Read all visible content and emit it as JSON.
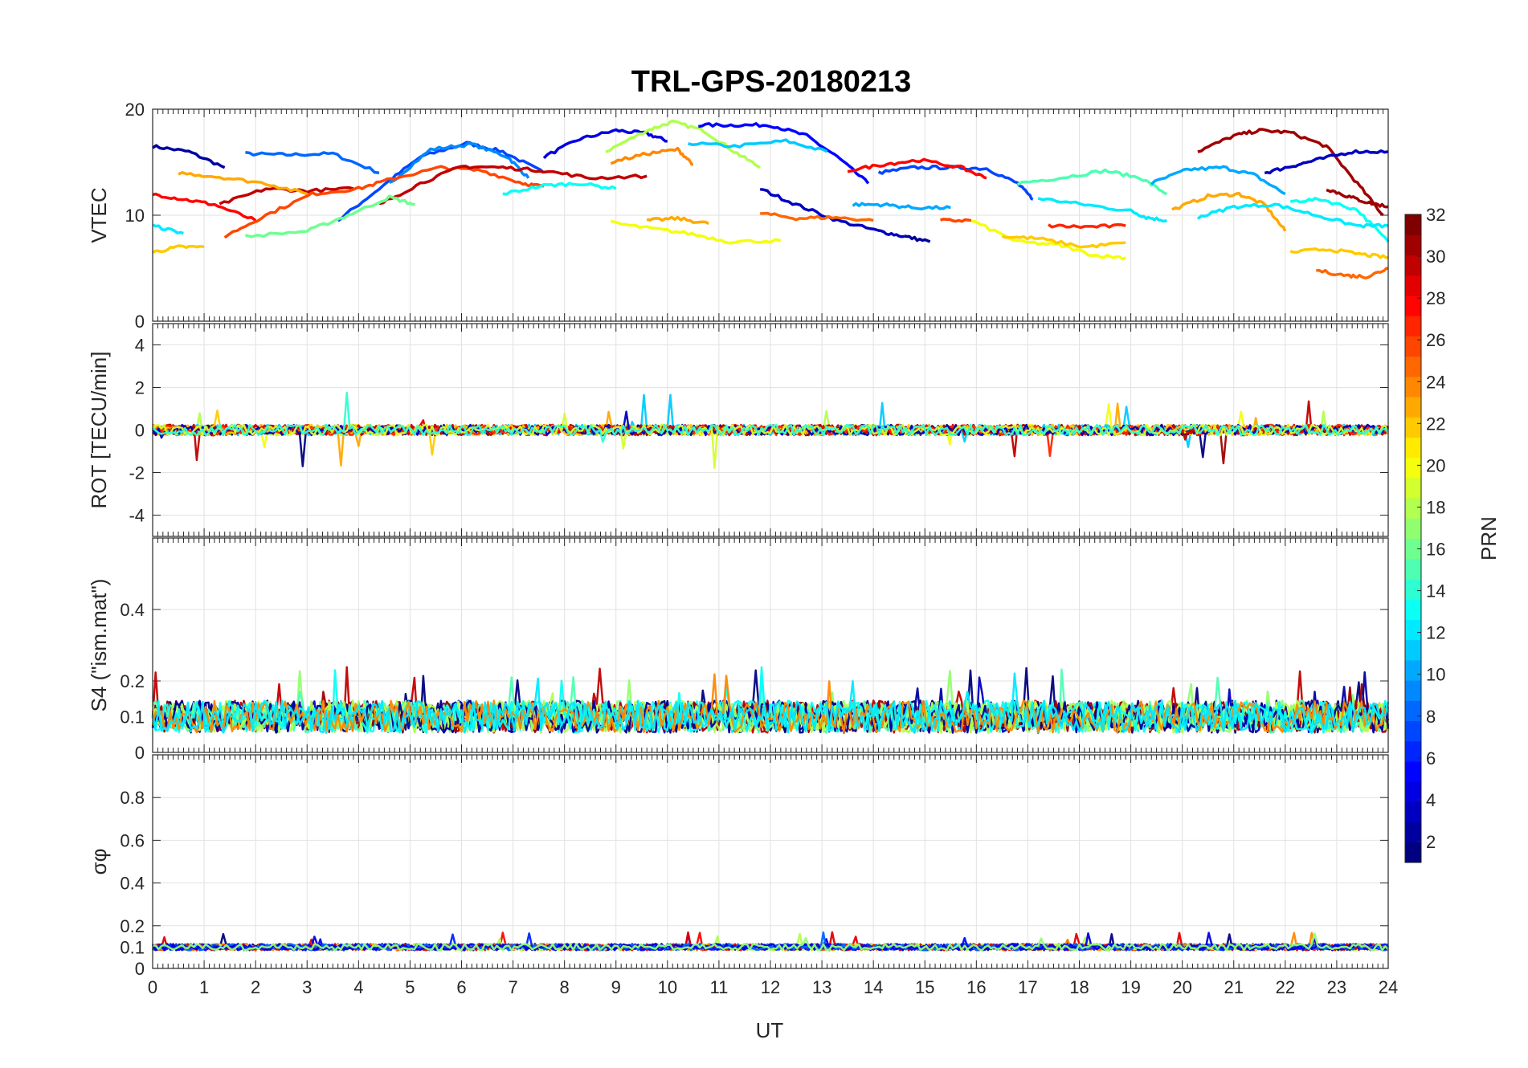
{
  "chart_data": {
    "type": "line",
    "title": "TRL-GPS-20180213",
    "xlabel": "UT",
    "xlim": [
      0,
      24
    ],
    "x_ticks": [
      "0",
      "1",
      "2",
      "3",
      "4",
      "5",
      "6",
      "7",
      "8",
      "9",
      "10",
      "11",
      "12",
      "13",
      "14",
      "15",
      "16",
      "17",
      "18",
      "19",
      "20",
      "21",
      "22",
      "23",
      "24"
    ],
    "colorbar": {
      "label": "PRN",
      "range": [
        1,
        32
      ],
      "ticks": [
        "2",
        "4",
        "6",
        "8",
        "10",
        "12",
        "14",
        "16",
        "18",
        "20",
        "22",
        "24",
        "26",
        "28",
        "30",
        "32"
      ],
      "colormap": "jet"
    },
    "panels": [
      {
        "name": "vtec",
        "ylabel": "VTEC",
        "ylim": [
          0,
          20
        ],
        "y_ticks": [
          "0",
          "10",
          "20"
        ],
        "series": [
          {
            "prn": 2,
            "x": [
              0,
              0.7,
              1.4
            ],
            "y": [
              16.5,
              16,
              14.5
            ]
          },
          {
            "prn": 8,
            "x": [
              1.8,
              2.6,
              3.5,
              4.4
            ],
            "y": [
              15.8,
              15.7,
              15.8,
              14
            ]
          },
          {
            "prn": 7,
            "x": [
              3.6,
              4.4,
              5.2,
              6.1,
              6.8,
              7.6
            ],
            "y": [
              9.5,
              12.5,
              15.5,
              16.8,
              16,
              14
            ]
          },
          {
            "prn": 9,
            "x": [
              4.6,
              5.4,
              6.2,
              6.9,
              7.3
            ],
            "y": [
              13,
              16.2,
              16.7,
              15.5,
              13.5
            ]
          },
          {
            "prn": 4,
            "x": [
              7.6,
              8.3,
              9,
              9.6,
              10
            ],
            "y": [
              15.5,
              17.2,
              18,
              17.7,
              17
            ]
          },
          {
            "prn": 18,
            "x": [
              8.8,
              9.6,
              10.1,
              10.7,
              11.3,
              11.8
            ],
            "y": [
              16,
              18,
              18.8,
              18,
              16,
              14.5
            ]
          },
          {
            "prn": 5,
            "x": [
              10.6,
              11.3,
              12,
              12.7,
              13.3,
              13.9
            ],
            "y": [
              18.5,
              18.5,
              18.5,
              17.5,
              15.5,
              13
            ]
          },
          {
            "prn": 11,
            "x": [
              10.4,
              11.3,
              12.3,
              13.1
            ],
            "y": [
              16.8,
              16.5,
              17,
              16
            ]
          },
          {
            "prn": 3,
            "x": [
              11.8,
              12.5,
              13.3,
              14.1,
              14.6
            ],
            "y": [
              12.5,
              11,
              9.5,
              8.5,
              8
            ]
          },
          {
            "prn": 2,
            "x": [
              14.6,
              15.1
            ],
            "y": [
              8,
              7.5
            ]
          },
          {
            "prn": 7,
            "x": [
              14.1,
              14.8,
              15.5,
              16.2,
              16.8,
              17.1
            ],
            "y": [
              14,
              14.5,
              14.5,
              14.4,
              13,
              11.5
            ]
          },
          {
            "prn": 15,
            "x": [
              16.8,
              17.6,
              18.5,
              19.2,
              19.7
            ],
            "y": [
              13,
              13.5,
              14.2,
              13.5,
              12
            ]
          },
          {
            "prn": 10,
            "x": [
              19.4,
              20.1,
              20.8,
              21.4,
              22
            ],
            "y": [
              13,
              14.3,
              14.5,
              13.8,
              12
            ]
          },
          {
            "prn": 12,
            "x": [
              17.2,
              18.1,
              19,
              19.3,
              19.7
            ],
            "y": [
              11.6,
              11,
              10.4,
              9.8,
              9.5
            ]
          },
          {
            "prn": 31,
            "x": [
              20.3,
              21,
              21.5,
              22.1,
              22.8,
              23.4,
              23.9
            ],
            "y": [
              16,
              17.5,
              18,
              17.8,
              16.5,
              13,
              10
            ]
          },
          {
            "prn": 3,
            "x": [
              21.6,
              22.1,
              22.6,
              23.3,
              24
            ],
            "y": [
              14,
              14.6,
              15.2,
              16,
              16
            ]
          },
          {
            "prn": 23,
            "x": [
              19.8,
              20.5,
              21.1,
              21.6,
              22
            ],
            "y": [
              10.5,
              11.8,
              12,
              11,
              8.5
            ]
          },
          {
            "prn": 13,
            "x": [
              22.1,
              22.7,
              23.4,
              24
            ],
            "y": [
              11.3,
              11.5,
              10.5,
              7.5
            ]
          },
          {
            "prn": 28,
            "x": [
              0,
              0.6,
              1.2,
              2
            ],
            "y": [
              12,
              11.5,
              11,
              9.5
            ]
          },
          {
            "prn": 30,
            "x": [
              1.3,
              2.2,
              3,
              3.9
            ],
            "y": [
              11,
              12.5,
              12.3,
              12.5
            ]
          },
          {
            "prn": 23,
            "x": [
              0.5,
              1.3,
              2.2,
              3
            ],
            "y": [
              14,
              13.6,
              13,
              12
            ]
          },
          {
            "prn": 26,
            "x": [
              1.4,
              2.2,
              3.1,
              4,
              4.7,
              5.6,
              6.4,
              7.2,
              7.6
            ],
            "y": [
              8,
              10,
              12,
              12.5,
              13.5,
              14.5,
              14.2,
              13,
              12.7
            ]
          },
          {
            "prn": 30,
            "x": [
              4.4,
              5.2,
              6,
              6.8,
              7.6,
              8.5,
              9.6
            ],
            "y": [
              11,
              13,
              14.6,
              14.5,
              14.2,
              13.5,
              13.7
            ]
          },
          {
            "prn": 16,
            "x": [
              1.8,
              3,
              3.8,
              4.6,
              5.1
            ],
            "y": [
              8,
              8.5,
              10,
              11.7,
              11
            ]
          },
          {
            "prn": 12,
            "x": [
              0,
              0.6
            ],
            "y": [
              9,
              8.3
            ]
          },
          {
            "prn": 22,
            "x": [
              0,
              0.5,
              1
            ],
            "y": [
              6.5,
              7,
              7
            ]
          },
          {
            "prn": 13,
            "x": [
              6.8,
              7.6,
              8.3,
              9
            ],
            "y": [
              12,
              12.8,
              13,
              12.5
            ]
          },
          {
            "prn": 24,
            "x": [
              8.9,
              9.6,
              10.2,
              10.5
            ],
            "y": [
              15,
              15.8,
              16.2,
              14.8
            ]
          },
          {
            "prn": 20,
            "x": [
              8.9,
              9.6,
              10.4,
              11.2,
              12.2
            ],
            "y": [
              9.3,
              8.8,
              8.3,
              7.5,
              7.6
            ]
          },
          {
            "prn": 23,
            "x": [
              9.6,
              10.2,
              10.8
            ],
            "y": [
              9.5,
              9.7,
              9.2
            ]
          },
          {
            "prn": 25,
            "x": [
              11.8,
              12.5,
              13.2,
              14
            ],
            "y": [
              10.2,
              9.7,
              9.8,
              9.5
            ]
          },
          {
            "prn": 10,
            "x": [
              13.6,
              14.2,
              14.8,
              15.5
            ],
            "y": [
              11,
              11,
              10.7,
              10.7
            ]
          },
          {
            "prn": 26,
            "x": [
              15.3,
              15.9
            ],
            "y": [
              9.5,
              9.5
            ]
          },
          {
            "prn": 20,
            "x": [
              15.9,
              16.8,
              17.6,
              18.3,
              18.9
            ],
            "y": [
              9.5,
              7.5,
              7.2,
              6.2,
              6
            ]
          },
          {
            "prn": 22,
            "x": [
              16.5,
              17.2,
              18.1,
              18.9
            ],
            "y": [
              8,
              7.8,
              7,
              7.4
            ]
          },
          {
            "prn": 27,
            "x": [
              17.4,
              18.1,
              18.9
            ],
            "y": [
              9,
              8.9,
              9
            ]
          },
          {
            "prn": 28,
            "x": [
              13.5,
              14.2,
              14.9,
              15.7,
              16.2
            ],
            "y": [
              14.2,
              14.8,
              15.2,
              14.5,
              13.5
            ]
          },
          {
            "prn": 12,
            "x": [
              20.3,
              21,
              21.8,
              22.6,
              23.4,
              24
            ],
            "y": [
              9.8,
              10.8,
              11,
              10,
              9,
              9
            ]
          },
          {
            "prn": 22,
            "x": [
              22.1,
              22.8,
              23.5,
              24
            ],
            "y": [
              6.5,
              6.8,
              6.3,
              6
            ]
          },
          {
            "prn": 25,
            "x": [
              22.6,
              23.2,
              23.6,
              24
            ],
            "y": [
              4.8,
              4.3,
              4.2,
              5
            ]
          },
          {
            "prn": 31,
            "x": [
              22.8,
              23.2,
              23.6,
              24
            ],
            "y": [
              12.5,
              11.8,
              11.2,
              10.8
            ]
          }
        ]
      },
      {
        "name": "rot",
        "ylabel": "ROT [TECU/min]",
        "ylim": [
          -5,
          5
        ],
        "y_ticks": [
          "-4",
          "-2",
          "0",
          "2",
          "4"
        ]
      },
      {
        "name": "s4",
        "ylabel": "S4 (\"ism.mat\")",
        "ylim": [
          0,
          0.6
        ],
        "y_ticks": [
          "0",
          "0.1",
          "0.2",
          "0.4"
        ]
      },
      {
        "name": "sigma_phi",
        "ylabel": "σφ",
        "ylim": [
          0,
          1
        ],
        "y_ticks": [
          "0",
          "0.1",
          "0.2",
          "0.4",
          "0.6",
          "0.8"
        ]
      }
    ]
  }
}
